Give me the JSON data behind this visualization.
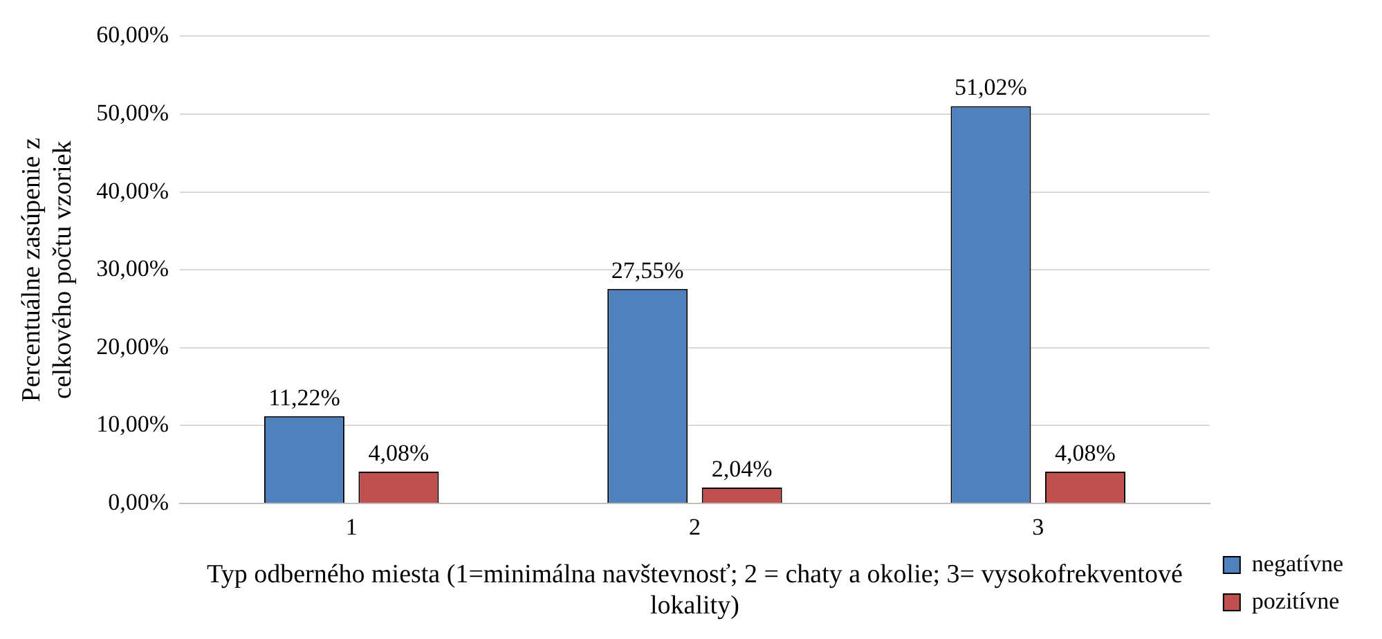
{
  "chart_data": {
    "type": "bar",
    "xlabel": "Typ odberného miesta (1=minimálna navštevnosť; 2 = chaty a okolie; 3= vysokofrekventové lokality)",
    "ylabel": "Percentuálne zasúpenie z celkového počtu vzoriek",
    "categories": [
      "1",
      "2",
      "3"
    ],
    "series": [
      {
        "name": "negatívne",
        "color": "#4f81bd",
        "values": [
          11.22,
          27.55,
          51.02
        ],
        "value_labels": [
          "11,22%",
          "27,55%",
          "51,02%"
        ]
      },
      {
        "name": "pozitívne",
        "color": "#c0504d",
        "values": [
          4.08,
          2.04,
          4.08
        ],
        "value_labels": [
          "4,08%",
          "2,04%",
          "4,08%"
        ]
      }
    ],
    "ylim": [
      0,
      60
    ],
    "yticks": [
      {
        "value": 0,
        "label": "0,00%"
      },
      {
        "value": 10,
        "label": "10,00%"
      },
      {
        "value": 20,
        "label": "20,00%"
      },
      {
        "value": 30,
        "label": "30,00%"
      },
      {
        "value": 40,
        "label": "40,00%"
      },
      {
        "value": 50,
        "label": "50,00%"
      },
      {
        "value": 60,
        "label": "60,00%"
      }
    ],
    "grid": "y",
    "legend": "right"
  }
}
